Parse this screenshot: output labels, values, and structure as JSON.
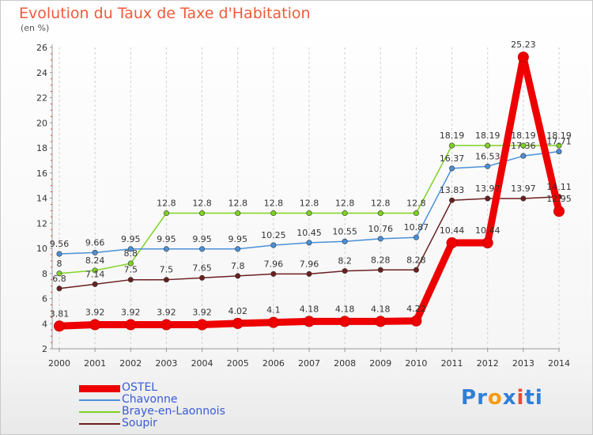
{
  "title": "Evolution du Taux de Taxe d'Habitation",
  "subtitle": "(en %)",
  "logo": {
    "text": "Proxiti",
    "letters": [
      "P",
      "r",
      "o",
      "x",
      "i",
      "t",
      "i"
    ],
    "colors": [
      "#2e7fd8",
      "#2e7fd8",
      "#f39c12",
      "#2e7fd8",
      "#e74c3c",
      "#2e7fd8",
      "#2e7fd8"
    ]
  },
  "chart_data": {
    "type": "line",
    "categories": [
      "2000",
      "2001",
      "2002",
      "2003",
      "2004",
      "2005",
      "2006",
      "2007",
      "2008",
      "2009",
      "2010",
      "2011",
      "2012",
      "2013",
      "2014"
    ],
    "ylim": [
      2,
      26
    ],
    "yticks": [
      2,
      4,
      6,
      8,
      10,
      12,
      14,
      16,
      18,
      20,
      22,
      24,
      26
    ],
    "grid": "vertical dashed",
    "legend_position": "bottom-left",
    "series": [
      {
        "name": "OSTEL",
        "color": "#ee0000",
        "width": "thick",
        "values": [
          3.81,
          3.92,
          3.92,
          3.92,
          3.92,
          4.02,
          4.1,
          4.18,
          4.18,
          4.18,
          4.22,
          10.44,
          10.44,
          25.23,
          12.95
        ],
        "labels": [
          "3.81",
          "3.92",
          "3.92",
          "3.92",
          "3.92",
          "4.02",
          "4.1",
          "4.18",
          "4.18",
          "4.18",
          "4.22",
          "10.44",
          "10.44",
          "25.23",
          "12.95"
        ]
      },
      {
        "name": "Chavonne",
        "color": "#4a90d9",
        "width": "thin",
        "values": [
          9.56,
          9.66,
          9.95,
          9.95,
          9.95,
          9.95,
          10.25,
          10.45,
          10.55,
          10.76,
          10.87,
          16.37,
          16.53,
          17.36,
          17.71
        ],
        "labels": [
          "9.56",
          "9.66",
          "9.95",
          "9.95",
          "9.95",
          "9.95",
          "10.25",
          "10.45",
          "10.55",
          "10.76",
          "10.87",
          "16.37",
          "16.53",
          "17.36",
          "17.71"
        ]
      },
      {
        "name": "Braye-en-Laonnois",
        "color": "#7ed321",
        "width": "thin",
        "values": [
          8,
          8.24,
          8.8,
          12.8,
          12.8,
          12.8,
          12.8,
          12.8,
          12.8,
          12.8,
          12.8,
          18.19,
          18.19,
          18.19,
          18.19
        ],
        "labels": [
          "8",
          "8.24",
          "8.8",
          "12.8",
          "12.8",
          "12.8",
          "12.8",
          "12.8",
          "12.8",
          "12.8",
          "12.8",
          "18.19",
          "18.19",
          "18.19",
          "18.19"
        ]
      },
      {
        "name": "Soupir",
        "color": "#6b1f1f",
        "width": "thin",
        "values": [
          6.8,
          7.14,
          7.5,
          7.5,
          7.65,
          7.8,
          7.96,
          7.96,
          8.2,
          8.28,
          8.28,
          13.83,
          13.97,
          13.97,
          14.11
        ],
        "labels": [
          "6.8",
          "7.14",
          "7.5",
          "7.5",
          "7.65",
          "7.8",
          "7.96",
          "7.96",
          "8.2",
          "8.28",
          "8.28",
          "13.83",
          "13.97",
          "13.97",
          "14.11"
        ]
      }
    ]
  }
}
